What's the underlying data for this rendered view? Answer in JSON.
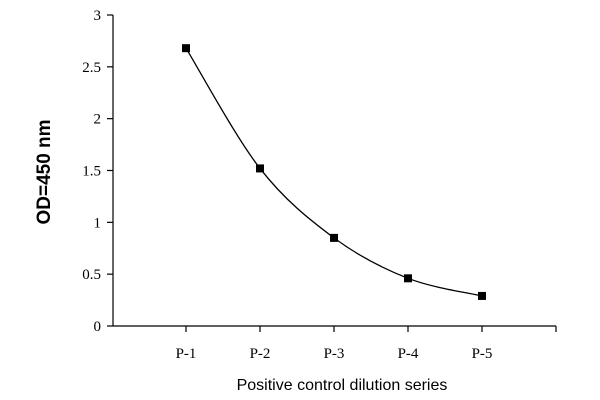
{
  "chart_data": {
    "type": "line",
    "title": "",
    "xlabel": "Positive control dilution series",
    "ylabel": "OD=450 nm",
    "categories": [
      "P-1",
      "P-2",
      "P-3",
      "P-4",
      "P-5"
    ],
    "series": [
      {
        "values": [
          2.68,
          1.52,
          0.85,
          0.46,
          0.29
        ]
      }
    ],
    "ylim": [
      0,
      3
    ],
    "yticks": [
      "0",
      "0.5",
      "1",
      "1.5",
      "2",
      "2.5",
      "3"
    ],
    "yticks_values": [
      0,
      0.5,
      1,
      1.5,
      2,
      2.5,
      3
    ],
    "grid": false,
    "legend": "none",
    "smooth": true,
    "marker": "square",
    "colors": {
      "line": "#000000",
      "marker": "#000000",
      "axis": "#000000",
      "background": "#ffffff"
    }
  }
}
